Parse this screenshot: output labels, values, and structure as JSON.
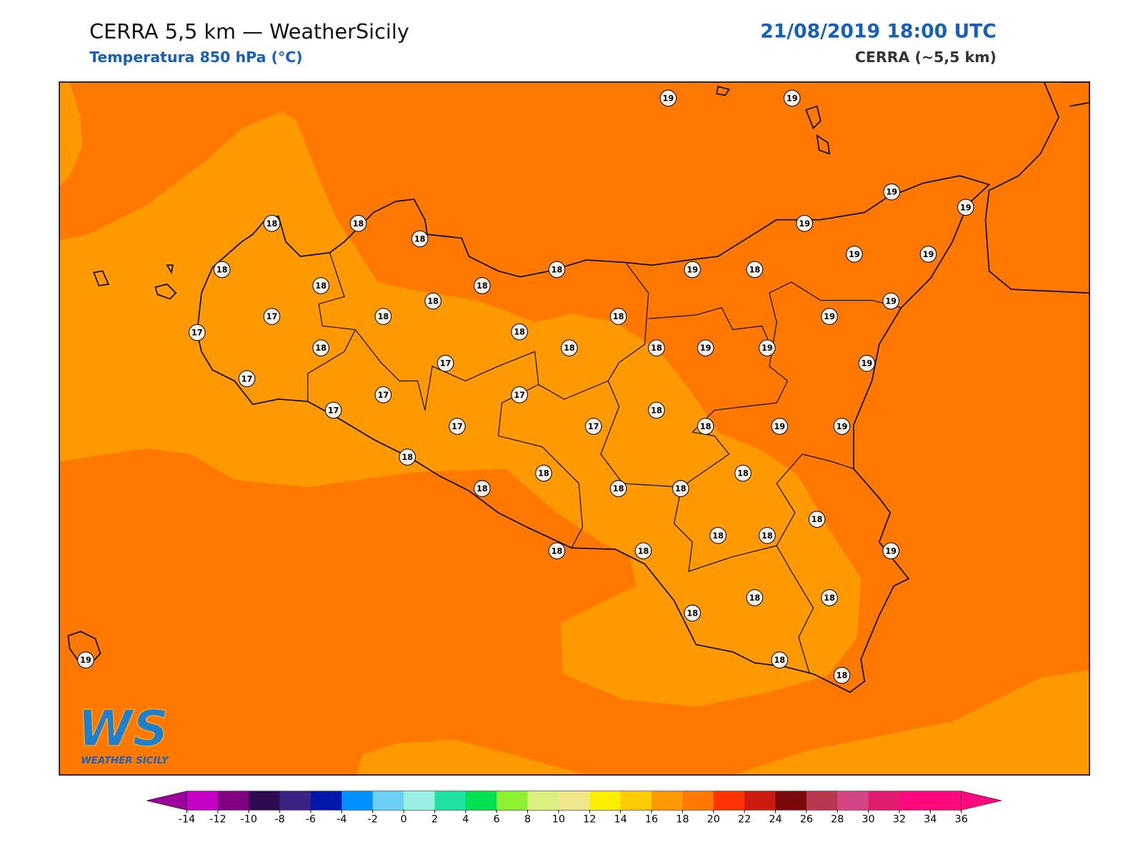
{
  "header": {
    "title": "CERRA 5,5 km — WeatherSicily",
    "subtitle": "Temperatura 850 hPa (°C)",
    "datetime": "21/08/2019 18:00 UTC",
    "model": "CERRA (~5,5 km)"
  },
  "map": {
    "stations": [
      19,
      19,
      19,
      19,
      18,
      18,
      18,
      19,
      18,
      18,
      19,
      18,
      19,
      19,
      18,
      18,
      18,
      19,
      17,
      18,
      18,
      19,
      17,
      18,
      18,
      18,
      18,
      19,
      19,
      17,
      19,
      17,
      17,
      17,
      17,
      18,
      17,
      17,
      18,
      19,
      19,
      18,
      18,
      18,
      18,
      18,
      18,
      18,
      18,
      18,
      19,
      18,
      18,
      18,
      18,
      18,
      19,
      18,
      18
    ]
  },
  "colorbar": {
    "ticks": [
      -14,
      -12,
      -10,
      -8,
      -6,
      -4,
      -2,
      0,
      2,
      4,
      6,
      8,
      10,
      12,
      14,
      16,
      18,
      20,
      22,
      24,
      26,
      28,
      30,
      32,
      34,
      36
    ],
    "colors": [
      "#c400c4",
      "#800080",
      "#2e0a50",
      "#3a2185",
      "#0018a8",
      "#0090ff",
      "#6ccff6",
      "#97f0e0",
      "#1fe0a0",
      "#00e050",
      "#8ef032",
      "#dcf080",
      "#f0e68c",
      "#ffee00",
      "#ffcc00",
      "#ff9900",
      "#ff7800",
      "#ff3300",
      "#cc1a0f",
      "#7a0a0a",
      "#b8384f",
      "#d44583",
      "#e01c6c",
      "#ff0a7e",
      "#ff0a7e"
    ],
    "under": "#9a009a",
    "over": "#ff0a7e"
  },
  "logo": {
    "mark": "WS",
    "name": "WEATHER SICILY"
  }
}
